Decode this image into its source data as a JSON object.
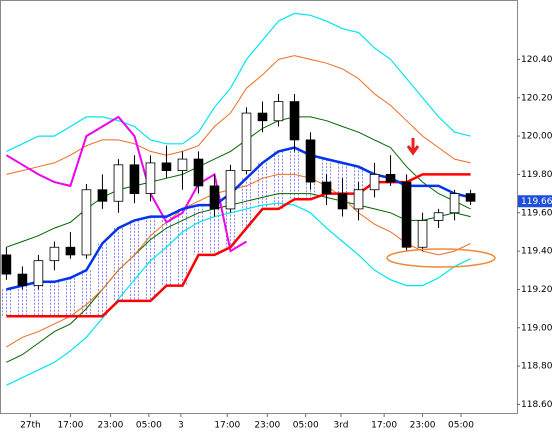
{
  "chart_data": {
    "type": "candlestick",
    "xlim": [
      -0.4,
      31.9
    ],
    "xticks": [
      {
        "value": 1.5,
        "label": "27th"
      },
      {
        "value": 4,
        "label": "17:00"
      },
      {
        "value": 6.5,
        "label": "23:00"
      },
      {
        "value": 8.9,
        "label": "05:00"
      },
      {
        "value": 10.9,
        "label": "3"
      },
      {
        "value": 13.8,
        "label": "17:00"
      },
      {
        "value": 16.3,
        "label": "23:00"
      },
      {
        "value": 18.7,
        "label": "05:00"
      },
      {
        "value": 20.9,
        "label": "3rd"
      },
      {
        "value": 23.6,
        "label": "17:00"
      },
      {
        "value": 26,
        "label": "23:00"
      },
      {
        "value": 28.4,
        "label": "05:00"
      }
    ],
    "ylim": [
      118.55,
      120.71
    ],
    "yticks": [
      {
        "value": 118.6,
        "label": "118.60"
      },
      {
        "value": 118.8,
        "label": "118.80"
      },
      {
        "value": 119.0,
        "label": "119.00"
      },
      {
        "value": 119.2,
        "label": "119.20"
      },
      {
        "value": 119.4,
        "label": "119.40"
      },
      {
        "value": 119.6,
        "label": "119.60"
      },
      {
        "value": 119.8,
        "label": "119.80"
      },
      {
        "value": 120.0,
        "label": "120.00"
      },
      {
        "value": 120.2,
        "label": "120.20"
      },
      {
        "value": 120.4,
        "label": "120.40"
      }
    ],
    "open": [
      119.38,
      119.28,
      119.22,
      119.35,
      119.42,
      119.38,
      119.72,
      119.66,
      119.85,
      119.7,
      119.86,
      119.82,
      119.88,
      119.74,
      119.62,
      119.82,
      120.12,
      120.08,
      120.18,
      119.98,
      119.76,
      119.7,
      119.62,
      119.72,
      119.8,
      119.76,
      119.42,
      119.56,
      119.6,
      119.7
    ],
    "high": [
      119.42,
      119.32,
      119.38,
      119.45,
      119.5,
      119.75,
      119.8,
      119.88,
      119.9,
      119.9,
      119.95,
      119.92,
      119.92,
      119.8,
      119.85,
      120.15,
      120.18,
      120.22,
      120.22,
      120.02,
      119.8,
      119.78,
      119.76,
      119.86,
      119.9,
      119.8,
      119.6,
      119.62,
      119.72,
      119.72
    ],
    "low": [
      119.25,
      119.2,
      119.2,
      119.3,
      119.36,
      119.36,
      119.62,
      119.6,
      119.65,
      119.66,
      119.78,
      119.72,
      119.7,
      119.58,
      119.6,
      119.8,
      120.02,
      120.05,
      119.92,
      119.72,
      119.64,
      119.58,
      119.56,
      119.68,
      119.74,
      119.4,
      119.4,
      119.52,
      119.56,
      119.64
    ],
    "close": [
      119.28,
      119.22,
      119.35,
      119.42,
      119.38,
      119.72,
      119.66,
      119.85,
      119.7,
      119.86,
      119.82,
      119.88,
      119.74,
      119.62,
      119.82,
      120.12,
      120.08,
      120.18,
      119.98,
      119.76,
      119.7,
      119.62,
      119.72,
      119.8,
      119.76,
      119.42,
      119.56,
      119.6,
      119.7,
      119.66
    ],
    "lines": [
      {
        "color": "#00e5ee",
        "width": 1.2,
        "values": [
          119.92,
          119.96,
          120.0,
          120.0,
          120.05,
          120.1,
          120.1,
          120.08,
          120.05,
          119.98,
          119.96,
          119.96,
          120.02,
          120.15,
          120.25,
          120.4,
          120.5,
          120.6,
          120.64,
          120.63,
          120.6,
          120.56,
          120.54,
          120.46,
          120.4,
          120.3,
          120.2,
          120.1,
          120.02,
          120.0
        ]
      },
      {
        "color": "#f06a1e",
        "width": 1,
        "values": [
          119.8,
          119.82,
          119.84,
          119.86,
          119.9,
          119.95,
          119.98,
          119.98,
          119.96,
          119.92,
          119.9,
          119.92,
          119.95,
          120.05,
          120.12,
          120.25,
          120.32,
          120.4,
          120.42,
          120.4,
          120.38,
          120.35,
          120.3,
          120.22,
          120.16,
          120.08,
          120.0,
          119.94,
          119.88,
          119.86
        ]
      },
      {
        "color": "#006400",
        "width": 1,
        "values": [
          119.42,
          119.45,
          119.48,
          119.52,
          119.55,
          119.62,
          119.68,
          119.72,
          119.74,
          119.76,
          119.78,
          119.8,
          119.84,
          119.88,
          119.92,
          119.98,
          120.04,
          120.08,
          120.1,
          120.1,
          120.08,
          120.05,
          120.02,
          119.98,
          119.94,
          119.84,
          119.76,
          119.7,
          119.66,
          119.62
        ]
      },
      {
        "color": "#006400",
        "width": 1,
        "values": [
          118.82,
          118.86,
          118.92,
          118.98,
          119.02,
          119.1,
          119.2,
          119.3,
          119.38,
          119.46,
          119.52,
          119.56,
          119.6,
          119.62,
          119.64,
          119.66,
          119.68,
          119.7,
          119.7,
          119.7,
          119.68,
          119.66,
          119.64,
          119.62,
          119.6,
          119.56,
          119.56,
          119.58,
          119.6,
          119.58
        ]
      },
      {
        "color": "#f06a1e",
        "width": 1,
        "values": [
          118.9,
          118.95,
          118.98,
          119.02,
          119.06,
          119.12,
          119.2,
          119.3,
          119.38,
          119.48,
          119.55,
          119.62,
          119.66,
          119.7,
          119.72,
          119.74,
          119.78,
          119.8,
          119.8,
          119.78,
          119.74,
          119.68,
          119.6,
          119.54,
          119.5,
          119.44,
          119.4,
          119.38,
          119.4,
          119.44
        ]
      },
      {
        "color": "#00e5ee",
        "width": 1.2,
        "values": [
          118.7,
          118.74,
          118.78,
          118.82,
          118.88,
          118.95,
          119.05,
          119.15,
          119.25,
          119.35,
          119.42,
          119.5,
          119.55,
          119.58,
          119.6,
          119.62,
          119.64,
          119.65,
          119.64,
          119.6,
          119.52,
          119.45,
          119.38,
          119.3,
          119.25,
          119.22,
          119.22,
          119.26,
          119.32,
          119.36
        ]
      },
      {
        "color": "#ee00ee",
        "width": 2,
        "values": [
          119.9,
          119.85,
          119.8,
          119.76,
          119.74,
          120.0,
          120.05,
          120.1,
          120.0,
          119.7,
          119.55,
          119.6,
          119.75,
          119.8,
          119.4,
          119.45,
          null,
          null,
          null,
          null,
          null,
          null,
          null,
          null,
          null,
          null,
          null,
          null,
          null,
          null
        ]
      },
      {
        "color": "#ff0000",
        "width": 2.5,
        "values": [
          119.06,
          119.06,
          119.06,
          119.06,
          119.06,
          119.06,
          119.06,
          119.14,
          119.14,
          119.14,
          119.22,
          119.22,
          119.38,
          119.38,
          119.42,
          119.52,
          119.62,
          119.62,
          119.67,
          119.67,
          119.7,
          119.7,
          119.7,
          119.76,
          119.76,
          119.76,
          119.8,
          119.8,
          119.8,
          119.8
        ]
      },
      {
        "color": "#0033ee",
        "width": 2.5,
        "values": [
          119.2,
          119.22,
          119.24,
          119.24,
          119.26,
          119.3,
          119.44,
          119.52,
          119.56,
          119.58,
          119.58,
          119.62,
          119.64,
          119.64,
          119.7,
          119.78,
          119.86,
          119.92,
          119.94,
          119.9,
          119.88,
          119.86,
          119.84,
          119.8,
          119.78,
          119.74,
          119.74,
          119.74,
          119.7,
          119.68
        ]
      }
    ],
    "last_price": 119.66,
    "last_label": "119.66",
    "last_color": "#1e4fd8"
  }
}
